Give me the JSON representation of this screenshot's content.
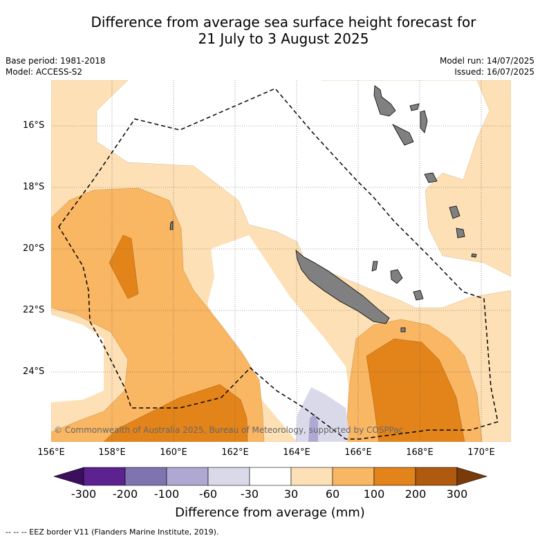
{
  "title_line1": "Difference from average sea surface height forecast for",
  "title_line2": "21 July to 3 August 2025",
  "base_period": "Base period: 1981-2018",
  "model": "Model: ACCESS-S2",
  "model_run": "Model run: 14/07/2025",
  "issued": "Issued: 16/07/2025",
  "lat_labels": [
    "16°S",
    "18°S",
    "20°S",
    "22°S",
    "24°S"
  ],
  "lon_labels": [
    "156°E",
    "158°E",
    "160°E",
    "162°E",
    "164°E",
    "166°E",
    "168°E",
    "170°E"
  ],
  "copyright": "© Commonwealth of Australia 2025, Bureau of Meteorology, supported by COSPPac",
  "colorbar": {
    "ticks": [
      "-300",
      "-200",
      "-100",
      "-60",
      "-30",
      "30",
      "60",
      "100",
      "200",
      "300"
    ],
    "colors": [
      "#3b0f5e",
      "#5b2290",
      "#8074b0",
      "#aea8d2",
      "#d9d9ea",
      "#ffffff",
      "#fde0b5",
      "#f9b663",
      "#e2841a",
      "#b05a10",
      "#7a3a0a"
    ],
    "label": "Difference from average (mm)"
  },
  "legend_footnote": "--  --  -- EEZ border V11 (Flanders Marine Institute, 2019).",
  "colors": {
    "land": "#808080",
    "eez": "#000000",
    "grid": "#555555"
  }
}
